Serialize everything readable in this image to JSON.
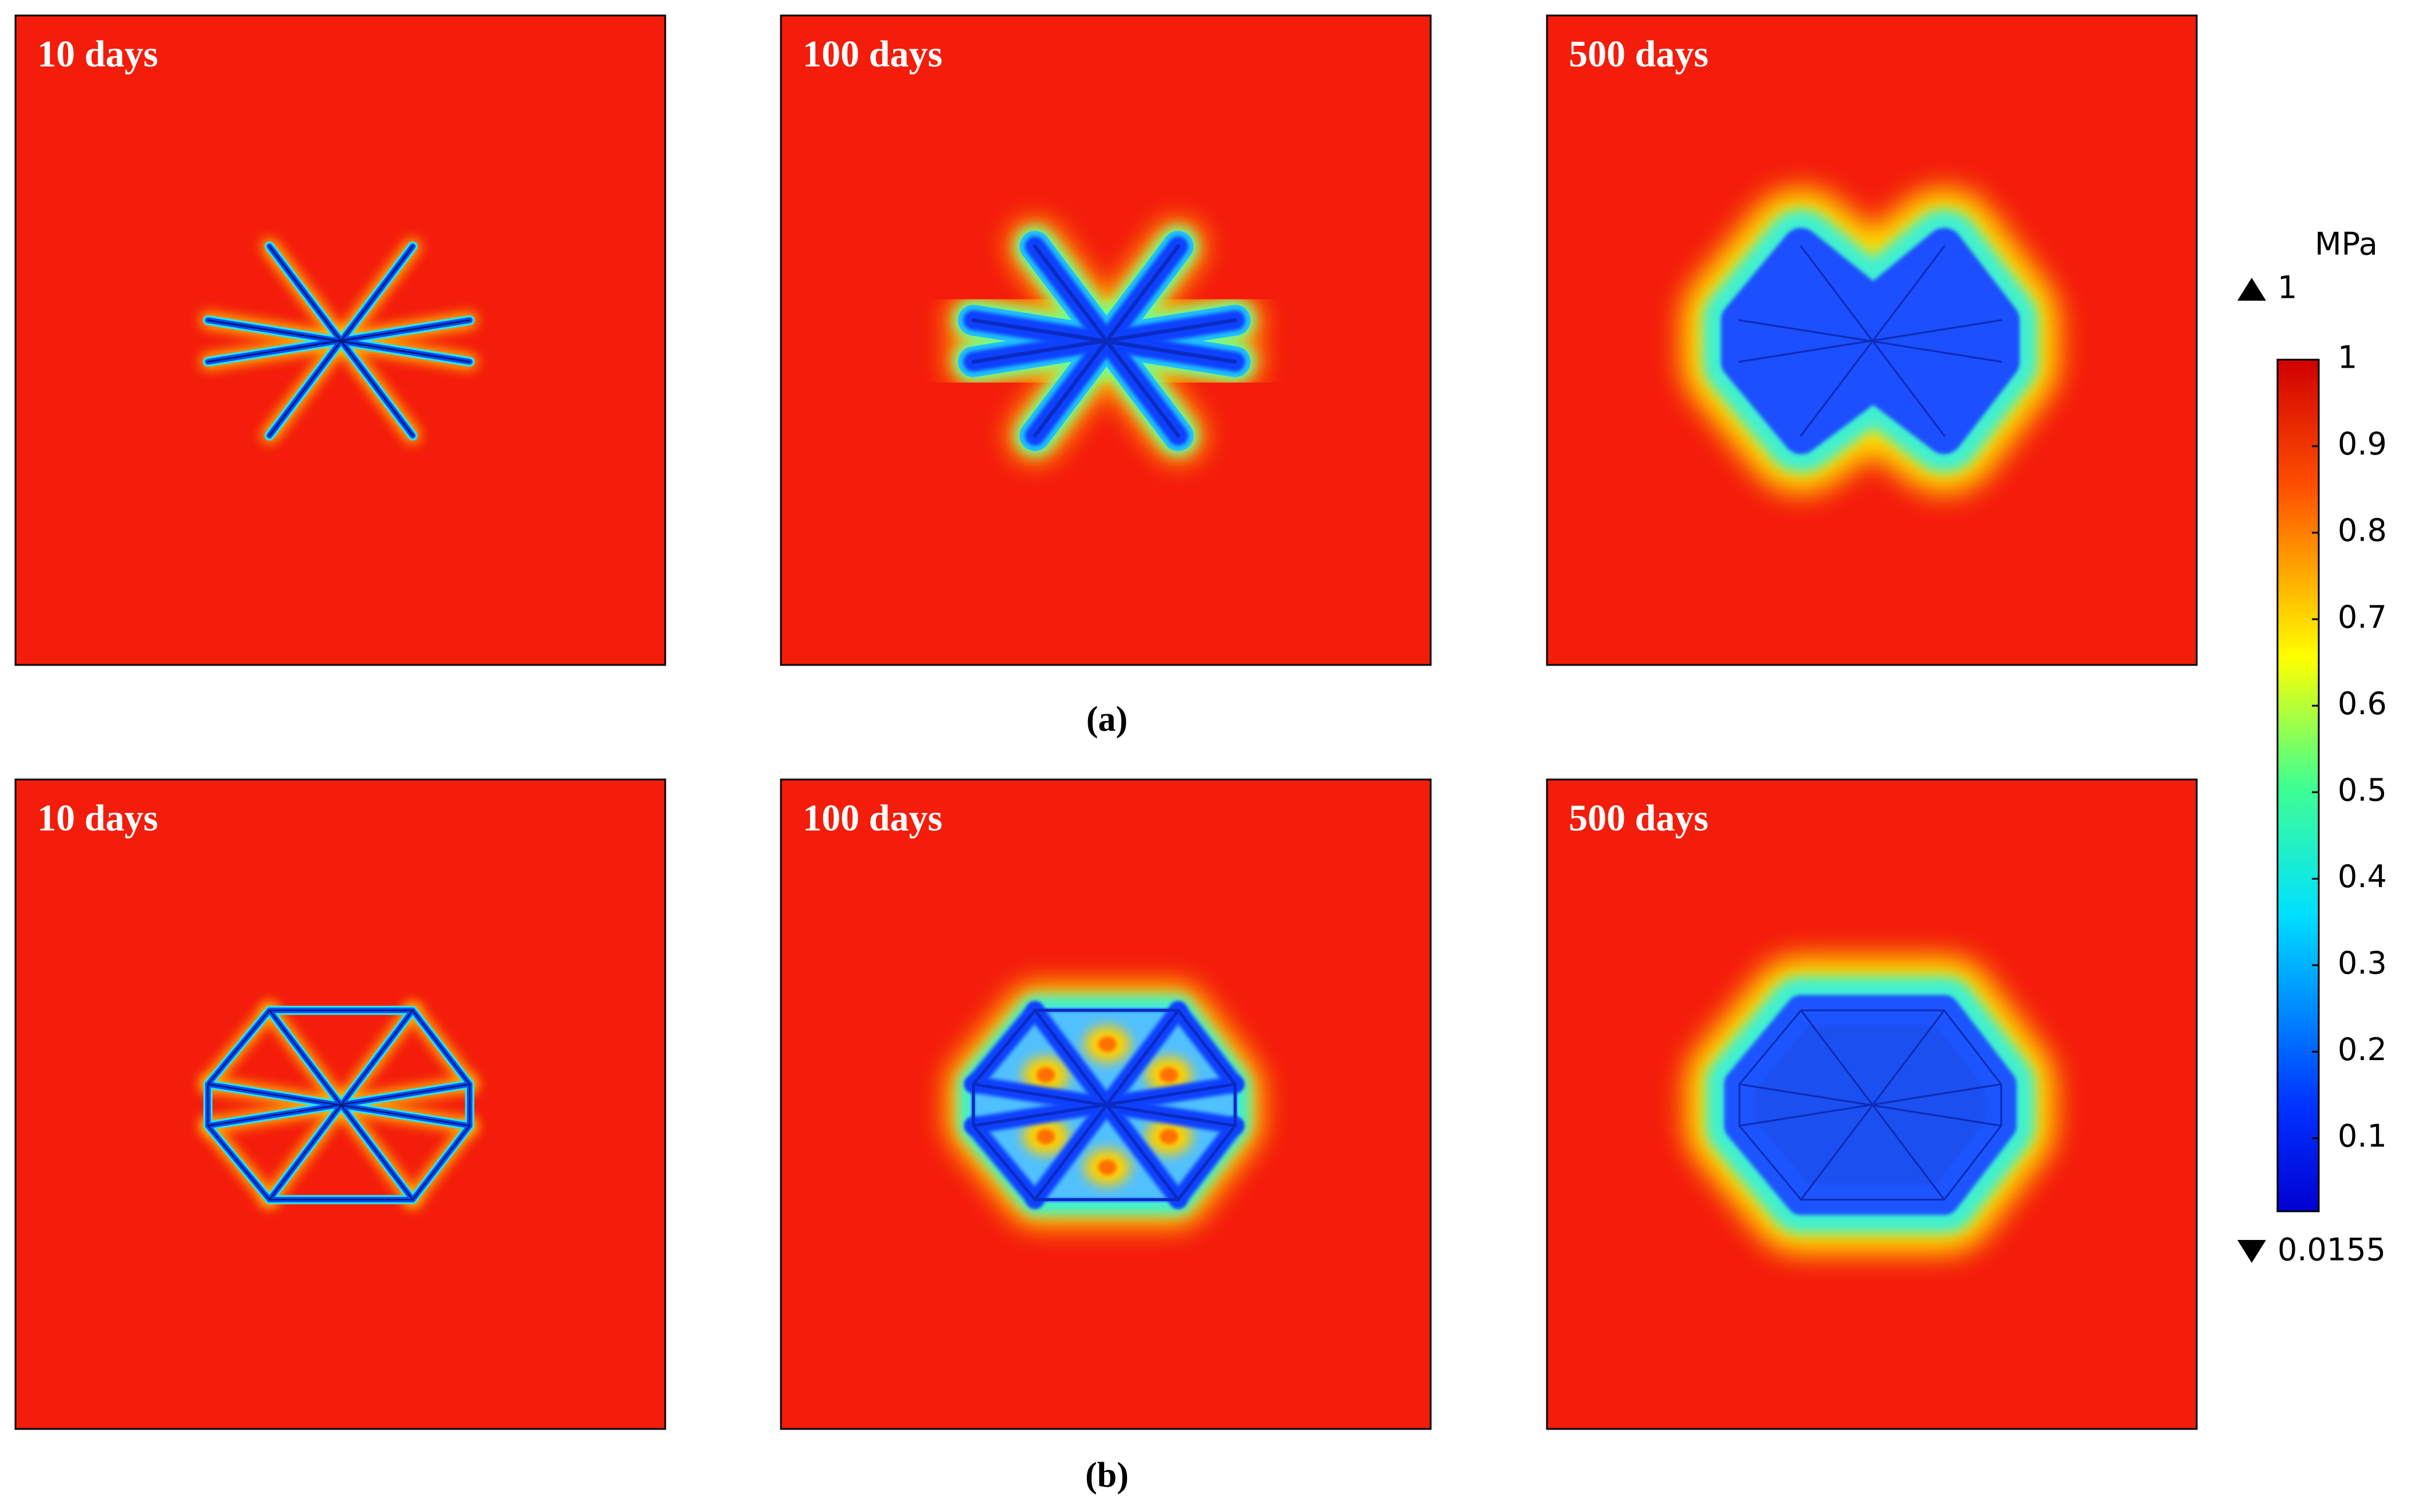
{
  "panels": [
    {
      "label": "10 days"
    },
    {
      "label": "100 days"
    },
    {
      "label": "500 days"
    },
    {
      "label": "10 days"
    },
    {
      "label": "100 days"
    },
    {
      "label": "500 days"
    }
  ],
  "captions": [
    "(a)",
    "(b)"
  ],
  "colorbar": {
    "unit": "MPa",
    "max": 1,
    "min": 0.0155,
    "ticks": [
      0.1,
      0.2,
      0.3,
      0.4,
      0.5,
      0.6,
      0.7,
      0.8,
      0.9,
      1
    ]
  }
}
